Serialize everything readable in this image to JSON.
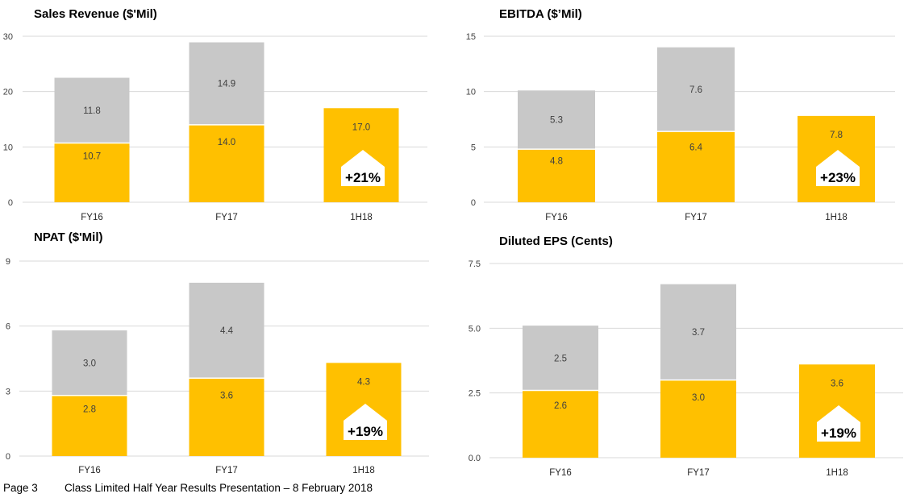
{
  "colors": {
    "bottom": "#FFC000",
    "top": "#C8C8C8",
    "grid": "#D9D9D9"
  },
  "footer": {
    "page": "Page 3",
    "text": "Class Limited Half Year Results Presentation – 8 February 2018"
  },
  "chart_data": [
    {
      "type": "bar",
      "title": "Sales Revenue ($'Mil)",
      "categories": [
        "FY16",
        "FY17",
        "1H18"
      ],
      "series": [
        {
          "values": [
            10.7,
            14.0,
            17.0
          ]
        },
        {
          "values": [
            11.8,
            14.9,
            null
          ]
        }
      ],
      "ylim": [
        0,
        30
      ],
      "yticks": [
        "0",
        "10",
        "20",
        "30"
      ],
      "ytick_values": [
        0,
        10,
        20,
        30
      ],
      "badge": "+21%",
      "grid": true
    },
    {
      "type": "bar",
      "title": "EBITDA ($’Mil)",
      "categories": [
        "FY16",
        "FY17",
        "1H18"
      ],
      "series": [
        {
          "values": [
            4.8,
            6.4,
            7.8
          ]
        },
        {
          "values": [
            5.3,
            7.6,
            null
          ]
        }
      ],
      "ylim": [
        0,
        15
      ],
      "yticks": [
        "0",
        "5",
        "10",
        "15"
      ],
      "ytick_values": [
        0,
        5,
        10,
        15
      ],
      "badge": "+23%",
      "grid": true
    },
    {
      "type": "bar",
      "title": "NPAT ($'Mil)",
      "categories": [
        "FY16",
        "FY17",
        "1H18"
      ],
      "series": [
        {
          "values": [
            2.8,
            3.6,
            4.3
          ]
        },
        {
          "values": [
            3.0,
            4.4,
            null
          ]
        }
      ],
      "ylim": [
        0,
        9
      ],
      "yticks": [
        "0",
        "3",
        "6",
        "9"
      ],
      "ytick_values": [
        0,
        3,
        6,
        9
      ],
      "badge": "+19%",
      "grid": true
    },
    {
      "type": "bar",
      "title": "Diluted EPS (Cents)",
      "categories": [
        "FY16",
        "FY17",
        "1H18"
      ],
      "series": [
        {
          "values": [
            2.6,
            3.0,
            3.6
          ]
        },
        {
          "values": [
            2.5,
            3.7,
            null
          ]
        }
      ],
      "ylim": [
        0,
        7.5
      ],
      "yticks": [
        "0.0",
        "2.5",
        "5.0",
        "7.5"
      ],
      "ytick_values": [
        0,
        2.5,
        5.0,
        7.5
      ],
      "badge": "+19%",
      "grid": true
    }
  ]
}
